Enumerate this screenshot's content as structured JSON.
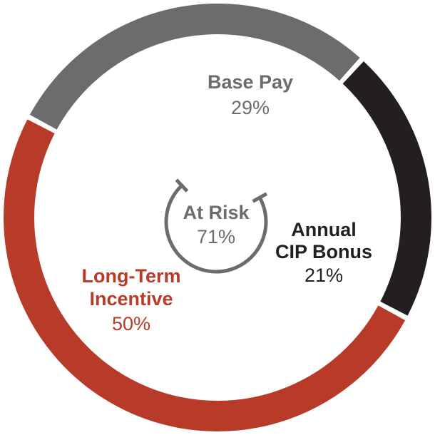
{
  "chart_data": {
    "type": "pie",
    "variant": "donut",
    "slices": [
      {
        "label_lines": [
          "Base Pay"
        ],
        "value_label": "29%",
        "value": 29,
        "color": "#6b6c6e"
      },
      {
        "label_lines": [
          "Annual",
          "CIP Bonus"
        ],
        "value_label": "21%",
        "value": 21,
        "color": "#231f20"
      },
      {
        "label_lines": [
          "Long-Term",
          "Incentive"
        ],
        "value_label": "50%",
        "value": 50,
        "color": "#b83b2a"
      }
    ],
    "center": {
      "title": "At Risk",
      "value_label": "71%",
      "value": 71,
      "color": "#6b6c6e"
    },
    "label_colors": {
      "base": "#6b6c6e",
      "cip": "#231f20",
      "lti": "#b83b2a"
    }
  }
}
